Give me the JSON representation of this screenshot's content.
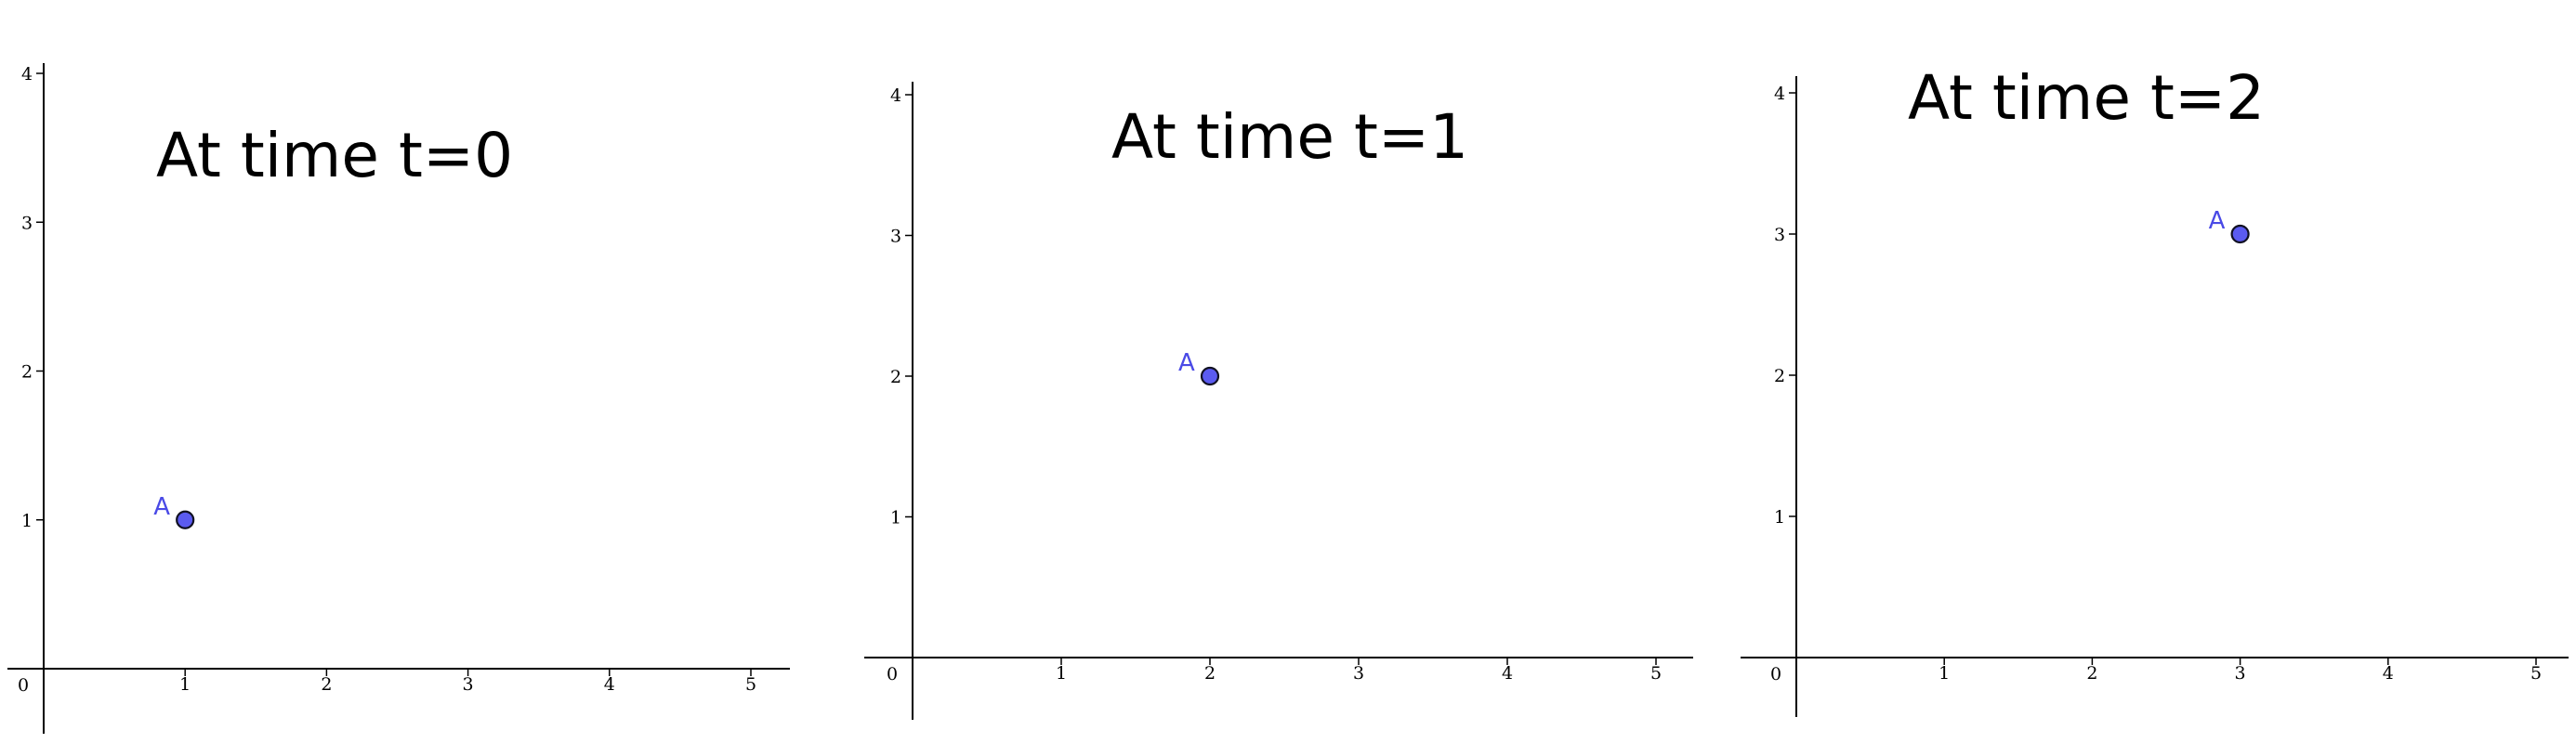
{
  "colors": {
    "point": "#5b5bf0",
    "point_label": "#4a4ae6",
    "axis": "#000000"
  },
  "chart_data": [
    {
      "type": "scatter",
      "title": "At time t=0",
      "origin_label": "0",
      "xlim": [
        -0.15,
        5.25
      ],
      "ylim": [
        -0.45,
        4.4
      ],
      "x_ticks": [
        1,
        2,
        3,
        4,
        5
      ],
      "y_ticks": [
        1,
        2,
        3,
        4
      ],
      "grid": false,
      "points": [
        {
          "label": "A",
          "x": 1,
          "y": 1
        }
      ]
    },
    {
      "type": "scatter",
      "title": "At time t=1",
      "origin_label": "0",
      "xlim": [
        -0.3,
        5.25
      ],
      "ylim": [
        -0.45,
        4.1
      ],
      "x_ticks": [
        1,
        2,
        3,
        4,
        5
      ],
      "y_ticks": [
        1,
        2,
        3,
        4
      ],
      "grid": false,
      "points": [
        {
          "label": "A",
          "x": 2,
          "y": 2
        }
      ]
    },
    {
      "type": "scatter",
      "title": "At time t=2",
      "origin_label": "0",
      "xlim": [
        -0.4,
        5.25
      ],
      "ylim": [
        -0.42,
        4.1
      ],
      "x_ticks": [
        1,
        2,
        3,
        4,
        5
      ],
      "y_ticks": [
        1,
        2,
        3,
        4
      ],
      "grid": false,
      "points": [
        {
          "label": "A",
          "x": 3,
          "y": 3
        }
      ]
    }
  ]
}
